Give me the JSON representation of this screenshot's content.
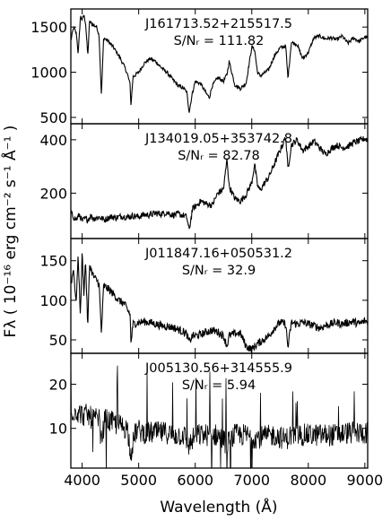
{
  "chart_data": {
    "type": "line",
    "shared_x": {
      "label": "Wavelength (Å)",
      "lim": [
        3800,
        9050
      ],
      "ticks": [
        4000,
        5000,
        6000,
        7000,
        8000,
        9000
      ]
    },
    "ylabel": "Fλ ( 10⁻¹⁶ erg cm⁻² s⁻¹ Å⁻¹ )",
    "panels": [
      {
        "name": "J161713.52+215517.5",
        "snr_label": "S/Nᵣ = 111.82",
        "ylim": [
          430,
          1700
        ],
        "yticks": [
          500,
          1000,
          1500
        ],
        "noise": 20,
        "x": [
          3800,
          3850,
          3900,
          3930,
          3970,
          4000,
          4030,
          4060,
          4100,
          4130,
          4200,
          4260,
          4300,
          4340,
          4380,
          4450,
          4550,
          4650,
          4750,
          4800,
          4850,
          4861,
          4900,
          5000,
          5100,
          5200,
          5300,
          5400,
          5500,
          5600,
          5700,
          5800,
          5850,
          5893,
          5950,
          6000,
          6100,
          6200,
          6250,
          6300,
          6400,
          6500,
          6563,
          6600,
          6700,
          6800,
          6900,
          7000,
          7050,
          7100,
          7150,
          7200,
          7300,
          7400,
          7500,
          7600,
          7640,
          7700,
          7800,
          7900,
          8000,
          8100,
          8200,
          8300,
          8400,
          8500,
          8600,
          8700,
          8800,
          8900,
          9000,
          9050
        ],
        "y": [
          1350,
          1500,
          1420,
          1200,
          1620,
          1580,
          1630,
          1550,
          1180,
          1560,
          1520,
          1500,
          1400,
          740,
          1380,
          1350,
          1280,
          1180,
          1060,
          980,
          860,
          620,
          950,
          1000,
          1100,
          1150,
          1120,
          1050,
          1000,
          920,
          850,
          820,
          780,
          560,
          770,
          900,
          870,
          760,
          720,
          850,
          940,
          900,
          980,
          1120,
          860,
          820,
          880,
          1280,
          1250,
          1000,
          960,
          980,
          1030,
          1180,
          1270,
          1290,
          930,
          1330,
          1310,
          1150,
          1220,
          1380,
          1400,
          1370,
          1380,
          1360,
          1400,
          1320,
          1380,
          1340,
          1390,
          1380
        ]
      },
      {
        "name": "J134019.05+353742.8",
        "snr_label": "S/Nᵣ = 82.78",
        "ylim": [
          30,
          460
        ],
        "yticks": [
          200,
          400
        ],
        "noise": 12,
        "x": [
          3800,
          3850,
          3900,
          3950,
          4000,
          4050,
          4100,
          4150,
          4200,
          4300,
          4400,
          4500,
          4600,
          4700,
          4800,
          4900,
          5000,
          5100,
          5200,
          5300,
          5400,
          5500,
          5600,
          5700,
          5800,
          5850,
          5893,
          5950,
          6000,
          6100,
          6200,
          6300,
          6400,
          6500,
          6563,
          6600,
          6700,
          6800,
          6900,
          7000,
          7050,
          7100,
          7150,
          7200,
          7300,
          7400,
          7500,
          7600,
          7640,
          7700,
          7800,
          7900,
          8000,
          8100,
          8200,
          8300,
          8400,
          8500,
          8600,
          8700,
          8800,
          8900,
          9000,
          9050
        ],
        "y": [
          125,
          110,
          100,
          120,
          95,
          105,
          100,
          115,
          105,
          110,
          100,
          112,
          108,
          114,
          110,
          115,
          112,
          120,
          118,
          125,
          122,
          128,
          118,
          122,
          116,
          110,
          60,
          140,
          150,
          170,
          160,
          155,
          200,
          215,
          330,
          225,
          180,
          170,
          195,
          240,
          310,
          230,
          210,
          230,
          260,
          310,
          360,
          410,
          290,
          380,
          400,
          360,
          375,
          395,
          370,
          345,
          365,
          380,
          370,
          375,
          390,
          395,
          405,
          400
        ]
      },
      {
        "name": "J011847.16+050531.2",
        "snr_label": "S/Nᵣ = 32.9",
        "ylim": [
          33,
          178
        ],
        "yticks": [
          50,
          100,
          150
        ],
        "noise": 5,
        "x": [
          3800,
          3850,
          3890,
          3930,
          3970,
          4000,
          4030,
          4060,
          4100,
          4130,
          4200,
          4260,
          4300,
          4340,
          4380,
          4450,
          4550,
          4650,
          4750,
          4800,
          4850,
          4861,
          4900,
          5000,
          5100,
          5200,
          5300,
          5400,
          5500,
          5600,
          5700,
          5800,
          5850,
          5893,
          5950,
          6000,
          6100,
          6200,
          6300,
          6400,
          6500,
          6563,
          6600,
          6700,
          6800,
          6900,
          7000,
          7100,
          7200,
          7300,
          7400,
          7500,
          7600,
          7640,
          7700,
          7800,
          7900,
          8000,
          8100,
          8200,
          8300,
          8400,
          8500,
          8600,
          8700,
          8800,
          8900,
          9000,
          9050
        ],
        "y": [
          120,
          140,
          95,
          155,
          80,
          160,
          110,
          150,
          65,
          145,
          130,
          125,
          120,
          58,
          118,
          115,
          108,
          100,
          95,
          88,
          82,
          45,
          70,
          72,
          73,
          72,
          70,
          68,
          67,
          66,
          63,
          60,
          57,
          47,
          55,
          55,
          57,
          60,
          62,
          60,
          55,
          42,
          55,
          58,
          58,
          42,
          38,
          45,
          50,
          55,
          65,
          72,
          70,
          40,
          72,
          70,
          72,
          70,
          68,
          65,
          68,
          70,
          72,
          70,
          72,
          73,
          70,
          74,
          72
        ]
      },
      {
        "name": "J005130.56+314555.9",
        "snr_label": "S/Nᵣ = 5.94",
        "ylim": [
          1,
          27
        ],
        "yticks": [
          10,
          20
        ],
        "noise": 2.6,
        "x": [
          3800,
          3900,
          4000,
          4100,
          4200,
          4300,
          4340,
          4400,
          4500,
          4600,
          4700,
          4800,
          4861,
          4950,
          5000,
          5100,
          5200,
          5300,
          5400,
          5500,
          5600,
          5700,
          5800,
          5893,
          6000,
          6200,
          6400,
          6563,
          6700,
          6900,
          7000,
          7200,
          7400,
          7600,
          7700,
          7900,
          8100,
          8300,
          8500,
          8700,
          8900,
          9050
        ],
        "y": [
          14,
          14,
          13,
          13,
          12,
          12,
          7,
          12,
          11.5,
          11,
          10.5,
          10,
          4.5,
          9.5,
          9.5,
          9,
          9,
          9,
          9,
          9,
          8.5,
          8.5,
          8.5,
          6,
          8.5,
          8.5,
          8.5,
          6.5,
          8.5,
          8.5,
          8,
          8,
          8.5,
          7.5,
          8.5,
          8.5,
          8.5,
          8.5,
          8.5,
          9,
          9,
          9
        ]
      }
    ]
  }
}
